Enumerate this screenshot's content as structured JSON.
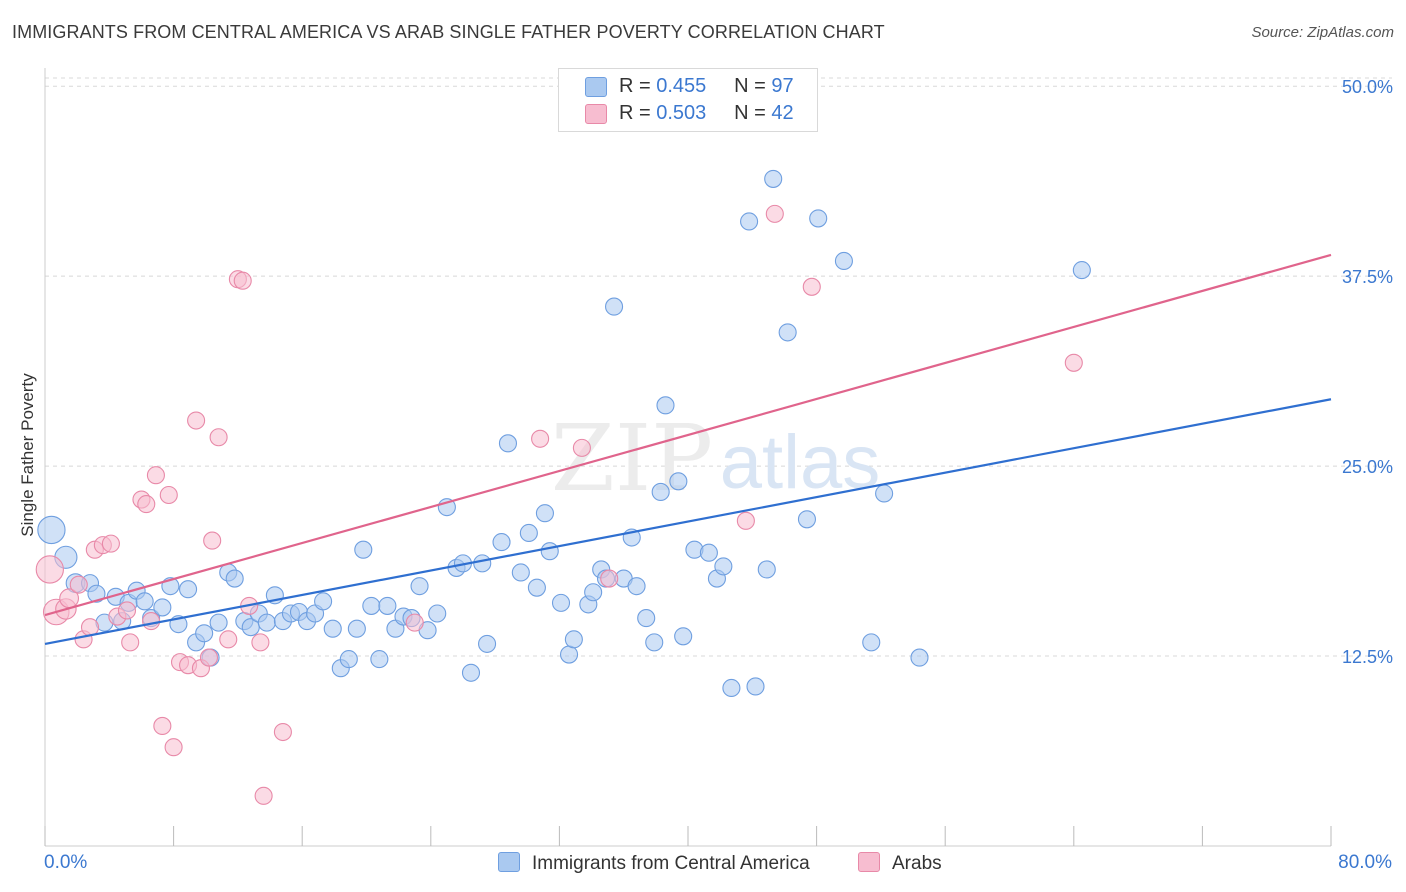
{
  "title": "IMMIGRANTS FROM CENTRAL AMERICA VS ARAB SINGLE FATHER POVERTY CORRELATION CHART",
  "source": "Source: ZipAtlas.com",
  "watermark": {
    "part1": "ZIP",
    "part2": "atlas"
  },
  "legend": {
    "r_label": "R =",
    "n_label": "N =",
    "series": [
      {
        "r": "0.455",
        "n": "97"
      },
      {
        "r": "0.503",
        "n": "42"
      }
    ]
  },
  "bottom_legend": [
    "Immigrants from Central America",
    "Arabs"
  ],
  "x_tick_labels": {
    "min": "0.0%",
    "max": "80.0%"
  },
  "colors": {
    "blue_fill": "#aac9f0",
    "blue_stroke": "#6f9fe0",
    "blue_line": "#2f6fd0",
    "pink_fill": "#f7bdd0",
    "pink_stroke": "#e889a8",
    "pink_line": "#e0648c",
    "tick_text": "#3b78d0",
    "grid": "#d8d8d8"
  },
  "chart_data": {
    "type": "scatter",
    "title": "IMMIGRANTS FROM CENTRAL AMERICA VS ARAB SINGLE FATHER POVERTY CORRELATION CHART",
    "xlabel": "",
    "ylabel": "Single Father Poverty",
    "xlim": [
      0,
      80
    ],
    "ylim": [
      0,
      51.2
    ],
    "y_ticks": [
      {
        "value": 12.5,
        "label": "12.5%"
      },
      {
        "value": 25,
        "label": "25.0%"
      },
      {
        "value": 37.5,
        "label": "37.5%"
      },
      {
        "value": 50,
        "label": "50.0%"
      }
    ],
    "grid": true,
    "legend_position": "top-center",
    "series": [
      {
        "name": "Immigrants from Central America",
        "r": 0.455,
        "n": 97,
        "trend": {
          "x": [
            0,
            80
          ],
          "y": [
            13.3,
            29.4
          ]
        },
        "points": [
          [
            0.4,
            20.8,
            1.6
          ],
          [
            1.3,
            19.0,
            1.3
          ],
          [
            1.9,
            17.3,
            1.1
          ],
          [
            2.8,
            17.3,
            1.0
          ],
          [
            3.2,
            16.6,
            1.0
          ],
          [
            3.7,
            14.7,
            1.0
          ],
          [
            4.4,
            16.4,
            1.0
          ],
          [
            4.8,
            14.8,
            1.0
          ],
          [
            5.2,
            16.0,
            1.0
          ],
          [
            5.7,
            16.8,
            1.0
          ],
          [
            6.2,
            16.1,
            1.0
          ],
          [
            6.6,
            15.0,
            1.0
          ],
          [
            7.3,
            15.7,
            1.0
          ],
          [
            7.8,
            17.1,
            1.0
          ],
          [
            8.3,
            14.6,
            1.0
          ],
          [
            8.9,
            16.9,
            1.0
          ],
          [
            9.4,
            13.4,
            1.0
          ],
          [
            9.9,
            14.0,
            1.0
          ],
          [
            10.3,
            12.4,
            1.0
          ],
          [
            10.8,
            14.7,
            1.0
          ],
          [
            11.4,
            18.0,
            1.0
          ],
          [
            11.8,
            17.6,
            1.0
          ],
          [
            12.4,
            14.8,
            1.0
          ],
          [
            12.8,
            14.4,
            1.0
          ],
          [
            13.3,
            15.3,
            1.0
          ],
          [
            13.8,
            14.7,
            1.0
          ],
          [
            14.3,
            16.5,
            1.0
          ],
          [
            14.8,
            14.8,
            1.0
          ],
          [
            15.3,
            15.3,
            1.0
          ],
          [
            15.8,
            15.4,
            1.0
          ],
          [
            16.3,
            14.8,
            1.0
          ],
          [
            16.8,
            15.3,
            1.0
          ],
          [
            17.3,
            16.1,
            1.0
          ],
          [
            17.9,
            14.3,
            1.0
          ],
          [
            18.4,
            11.7,
            1.0
          ],
          [
            18.9,
            12.3,
            1.0
          ],
          [
            19.4,
            14.3,
            1.0
          ],
          [
            19.8,
            19.5,
            1.0
          ],
          [
            20.3,
            15.8,
            1.0
          ],
          [
            20.8,
            12.3,
            1.0
          ],
          [
            21.3,
            15.8,
            1.0
          ],
          [
            21.8,
            14.3,
            1.0
          ],
          [
            22.3,
            15.1,
            1.0
          ],
          [
            22.8,
            15.0,
            1.0
          ],
          [
            23.3,
            17.1,
            1.0
          ],
          [
            23.8,
            14.2,
            1.0
          ],
          [
            24.4,
            15.3,
            1.0
          ],
          [
            25.0,
            22.3,
            1.0
          ],
          [
            25.6,
            18.3,
            1.0
          ],
          [
            26.0,
            18.6,
            1.0
          ],
          [
            26.5,
            11.4,
            1.0
          ],
          [
            27.2,
            18.6,
            1.0
          ],
          [
            27.5,
            13.3,
            1.0
          ],
          [
            28.4,
            20.0,
            1.0
          ],
          [
            28.8,
            26.5,
            1.0
          ],
          [
            29.6,
            18.0,
            1.0
          ],
          [
            30.1,
            20.6,
            1.0
          ],
          [
            30.6,
            17.0,
            1.0
          ],
          [
            31.1,
            21.9,
            1.0
          ],
          [
            31.4,
            19.4,
            1.0
          ],
          [
            32.1,
            16.0,
            1.0
          ],
          [
            32.6,
            12.6,
            1.0
          ],
          [
            32.9,
            13.6,
            1.0
          ],
          [
            33.8,
            15.9,
            1.0
          ],
          [
            34.1,
            16.7,
            1.0
          ],
          [
            34.6,
            18.2,
            1.0
          ],
          [
            34.9,
            17.6,
            1.0
          ],
          [
            35.4,
            35.5,
            1.0
          ],
          [
            36.0,
            17.6,
            1.0
          ],
          [
            36.5,
            20.3,
            1.0
          ],
          [
            36.8,
            17.1,
            1.0
          ],
          [
            37.4,
            15.0,
            1.0
          ],
          [
            37.9,
            13.4,
            1.0
          ],
          [
            38.3,
            23.3,
            1.0
          ],
          [
            38.6,
            29.0,
            1.0
          ],
          [
            39.4,
            24.0,
            1.0
          ],
          [
            39.7,
            13.8,
            1.0
          ],
          [
            40.4,
            19.5,
            1.0
          ],
          [
            41.3,
            19.3,
            1.0
          ],
          [
            41.8,
            17.6,
            1.0
          ],
          [
            42.2,
            18.4,
            1.0
          ],
          [
            42.7,
            10.4,
            1.0
          ],
          [
            43.8,
            41.1,
            1.0
          ],
          [
            44.2,
            10.5,
            1.0
          ],
          [
            44.9,
            18.2,
            1.0
          ],
          [
            45.3,
            43.9,
            1.0
          ],
          [
            46.2,
            33.8,
            1.0
          ],
          [
            47.4,
            21.5,
            1.0
          ],
          [
            48.1,
            41.3,
            1.0
          ],
          [
            49.7,
            38.5,
            1.0
          ],
          [
            51.4,
            13.4,
            1.0
          ],
          [
            52.2,
            23.2,
            1.0
          ],
          [
            54.4,
            12.4,
            1.0
          ],
          [
            64.5,
            37.9,
            1.0
          ]
        ]
      },
      {
        "name": "Arabs",
        "r": 0.503,
        "n": 42,
        "trend": {
          "x": [
            0,
            80
          ],
          "y": [
            15.2,
            38.9
          ]
        },
        "points": [
          [
            0.3,
            18.2,
            1.6
          ],
          [
            0.7,
            15.4,
            1.5
          ],
          [
            1.3,
            15.6,
            1.2
          ],
          [
            1.5,
            16.3,
            1.1
          ],
          [
            2.1,
            17.2,
            1.0
          ],
          [
            2.4,
            13.6,
            1.0
          ],
          [
            2.8,
            14.4,
            1.0
          ],
          [
            3.1,
            19.5,
            1.0
          ],
          [
            3.6,
            19.8,
            1.0
          ],
          [
            4.1,
            19.9,
            1.0
          ],
          [
            4.5,
            15.1,
            1.0
          ],
          [
            5.1,
            15.5,
            1.0
          ],
          [
            5.3,
            13.4,
            1.0
          ],
          [
            6.0,
            22.8,
            1.0
          ],
          [
            6.3,
            22.5,
            1.0
          ],
          [
            6.6,
            14.8,
            1.0
          ],
          [
            6.9,
            24.4,
            1.0
          ],
          [
            7.3,
            7.9,
            1.0
          ],
          [
            7.7,
            23.1,
            1.0
          ],
          [
            8.0,
            6.5,
            1.0
          ],
          [
            8.4,
            12.1,
            1.0
          ],
          [
            8.9,
            11.9,
            1.0
          ],
          [
            9.4,
            28.0,
            1.0
          ],
          [
            9.7,
            11.7,
            1.0
          ],
          [
            10.2,
            12.4,
            1.0
          ],
          [
            10.4,
            20.1,
            1.0
          ],
          [
            10.8,
            26.9,
            1.0
          ],
          [
            11.4,
            13.6,
            1.0
          ],
          [
            12.0,
            37.3,
            1.0
          ],
          [
            12.3,
            37.2,
            1.0
          ],
          [
            12.7,
            15.8,
            1.0
          ],
          [
            13.4,
            13.4,
            1.0
          ],
          [
            13.6,
            3.3,
            1.0
          ],
          [
            14.8,
            7.5,
            1.0
          ],
          [
            23.0,
            14.7,
            1.0
          ],
          [
            30.8,
            26.8,
            1.0
          ],
          [
            33.4,
            26.2,
            1.0
          ],
          [
            35.1,
            17.6,
            1.0
          ],
          [
            43.6,
            21.4,
            1.0
          ],
          [
            45.4,
            41.6,
            1.0
          ],
          [
            47.7,
            36.8,
            1.0
          ],
          [
            64.0,
            31.8,
            1.0
          ]
        ]
      }
    ]
  }
}
